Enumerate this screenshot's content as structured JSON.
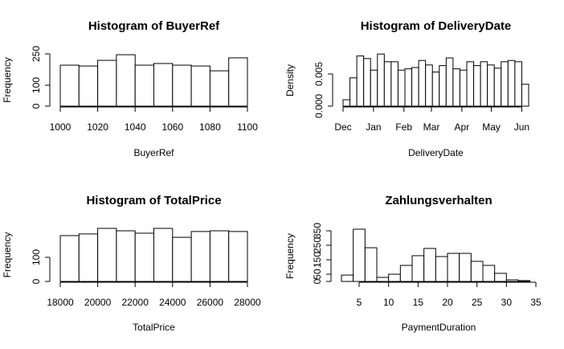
{
  "chart_data": [
    {
      "type": "histogram",
      "title": "Histogram of BuyerRef",
      "x_label": "BuyerRef",
      "y_label": "Frequency",
      "bins": [
        1000,
        1010,
        1020,
        1030,
        1040,
        1050,
        1060,
        1070,
        1080,
        1090,
        1100
      ],
      "values": [
        196,
        192,
        219,
        246,
        196,
        204,
        196,
        192,
        169,
        231
      ],
      "xlim": [
        1000,
        1100
      ],
      "xticks": [
        1000,
        1020,
        1040,
        1060,
        1080,
        1100
      ],
      "ylim": [
        0,
        250
      ],
      "yticks": [
        0,
        100,
        250
      ],
      "color": "#ffffff"
    },
    {
      "type": "histogram",
      "title": "Histogram of DeliveryDate",
      "x_label": "DeliveryDate",
      "y_label": "Density",
      "bins": [
        0,
        7,
        14,
        21,
        28,
        35,
        42,
        49,
        56,
        63,
        70,
        77,
        84,
        91,
        98,
        105,
        112,
        119,
        126,
        133,
        140,
        147,
        154,
        161,
        168,
        175,
        182,
        189
      ],
      "values": [
        0.001,
        0.0044,
        0.0078,
        0.0074,
        0.0056,
        0.0081,
        0.0069,
        0.0069,
        0.0056,
        0.0058,
        0.006,
        0.0071,
        0.0064,
        0.0053,
        0.0063,
        0.0075,
        0.0058,
        0.0056,
        0.0069,
        0.0063,
        0.0069,
        0.0064,
        0.0059,
        0.0069,
        0.0071,
        0.0069,
        0.0034
      ],
      "xlim": [
        0,
        189
      ],
      "xticks": [
        {
          "value": 0,
          "label": "Dec"
        },
        {
          "value": 31,
          "label": "Jan"
        },
        {
          "value": 62,
          "label": "Feb"
        },
        {
          "value": 90,
          "label": "Mar"
        },
        {
          "value": 121,
          "label": "Apr"
        },
        {
          "value": 151,
          "label": "May"
        },
        {
          "value": 182,
          "label": "Jun"
        }
      ],
      "ylim": [
        0,
        0.008
      ],
      "yticks": [
        {
          "value": 0,
          "label": "0.000"
        },
        0.005
      ],
      "color": "#ffffff"
    },
    {
      "type": "histogram",
      "title": "Histogram of TotalPrice",
      "x_label": "TotalPrice",
      "y_label": "Frequency",
      "bins": [
        18000,
        19000,
        20000,
        21000,
        22000,
        23000,
        24000,
        25000,
        26000,
        27000,
        28000
      ],
      "values": [
        190,
        197,
        220,
        210,
        200,
        220,
        183,
        207,
        210,
        207
      ],
      "xlim": [
        18000,
        28000
      ],
      "xticks": [
        18000,
        20000,
        22000,
        24000,
        26000,
        28000
      ],
      "ylim": [
        0,
        220
      ],
      "yticks": [
        0,
        100
      ],
      "color": "#ffffff"
    },
    {
      "type": "histogram",
      "title": "Zahlungsverhalten",
      "x_label": "PaymentDuration",
      "y_label": "Frequency",
      "bins": [
        2,
        4,
        6,
        8,
        10,
        12,
        14,
        16,
        18,
        20,
        22,
        24,
        26,
        28,
        30,
        32,
        34
      ],
      "values": [
        44,
        361,
        233,
        28,
        50,
        111,
        178,
        228,
        172,
        194,
        194,
        139,
        111,
        56,
        11,
        6
      ],
      "xlim": [
        2,
        35
      ],
      "xticks": [
        5,
        10,
        15,
        20,
        25,
        30,
        35
      ],
      "ylim": [
        0,
        350
      ],
      "yticks": [
        0,
        50,
        150,
        250,
        350
      ],
      "color": "#ffffff"
    }
  ]
}
